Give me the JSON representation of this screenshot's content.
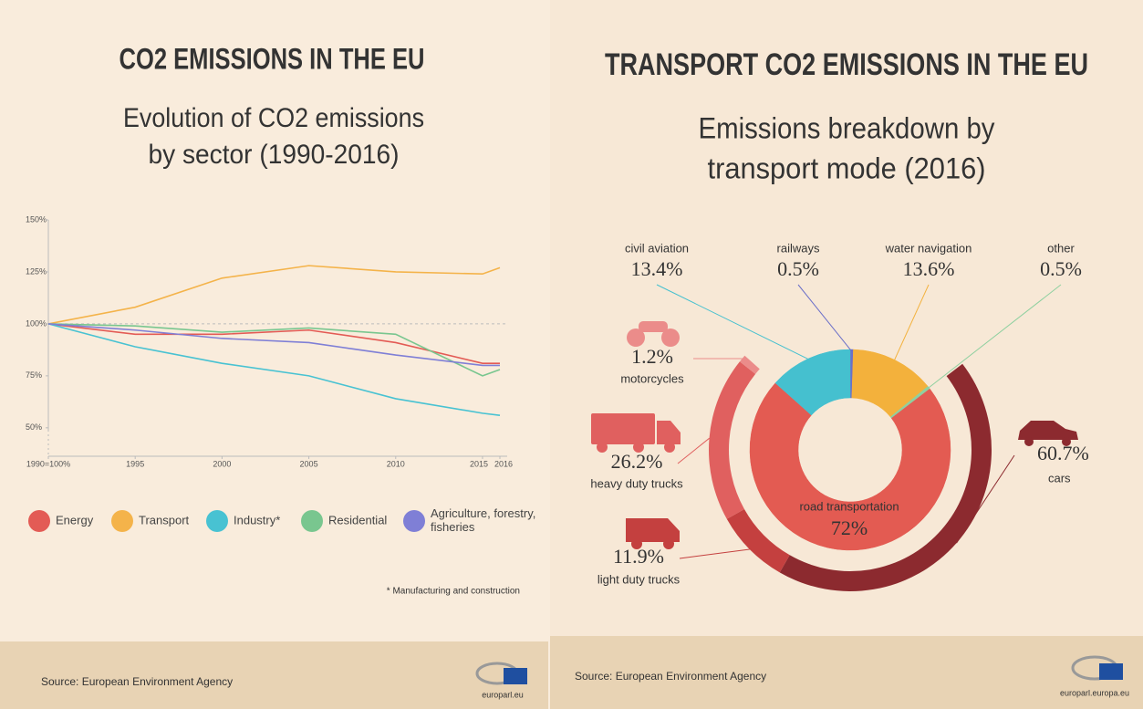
{
  "chart_data": [
    {
      "type": "line",
      "title": "CO2 EMISSIONS IN THE EU",
      "subtitle": [
        "Evolution of CO2 emissions",
        "by sector (1990-2016)"
      ],
      "x": [
        1990,
        1995,
        2000,
        2005,
        2010,
        2015,
        2016
      ],
      "xlim": [
        1990,
        2016
      ],
      "xticks": [
        {
          "value": 1990,
          "label": "1990=100%"
        },
        1995,
        2000,
        2005,
        2010,
        2015,
        2016
      ],
      "ylim": [
        35,
        150
      ],
      "yticks": [
        {
          "value": 50,
          "label": "50%"
        },
        {
          "value": 75,
          "label": "75%"
        },
        {
          "value": 100,
          "label": "100%"
        },
        {
          "value": 125,
          "label": "125%"
        },
        {
          "value": 150,
          "label": "150%"
        }
      ],
      "reference_line": 100,
      "series": [
        {
          "name": "Energy",
          "color": "#e35b55",
          "values": [
            100,
            95,
            95,
            97,
            91,
            81,
            81
          ]
        },
        {
          "name": "Transport",
          "color": "#f4b34a",
          "values": [
            100,
            108,
            122,
            128,
            125,
            124,
            127
          ]
        },
        {
          "name": "Industry*",
          "color": "#48c2d2",
          "values": [
            100,
            89,
            81,
            75,
            64,
            57,
            56
          ]
        },
        {
          "name": "Residential",
          "color": "#79c68f",
          "values": [
            100,
            99,
            96,
            98,
            95,
            75,
            78
          ]
        },
        {
          "name": "Agriculture, forestry, fisheries",
          "color": "#7f7fd6",
          "values": [
            100,
            97,
            93,
            91,
            85,
            80,
            80
          ]
        }
      ],
      "footnote": "* Manufacturing and construction",
      "source": "Source: European Environment Agency",
      "logo_text": "europarl.eu"
    },
    {
      "type": "donut",
      "title": "TRANSPORT CO2 EMISSIONS IN THE EU",
      "subtitle": [
        "Emissions breakdown by",
        "transport mode (2016)"
      ],
      "categories": [
        "railways",
        "water navigation",
        "other",
        "road transportation",
        "civil aviation"
      ],
      "values": [
        0.5,
        13.6,
        0.5,
        72,
        13.4
      ],
      "value_labels": [
        "0.5%",
        "13.6%",
        "0.5%",
        "72%",
        "13.4%"
      ],
      "colors": [
        "#6b6fc8",
        "#f3b13c",
        "#8fd0a0",
        "#e35b52",
        "#45c0cf"
      ],
      "breakdown": {
        "categories": [
          "cars",
          "light duty trucks",
          "heavy duty trucks",
          "motorcycles"
        ],
        "values": [
          60.7,
          11.9,
          26.2,
          1.2
        ],
        "value_labels": [
          "60.7%",
          "11.9%",
          "26.2%",
          "1.2%"
        ],
        "colors": [
          "#8c2a2f",
          "#c4403f",
          "#e0605f",
          "#eb8c8a"
        ]
      },
      "source": "Source: European Environment Agency",
      "logo_text": "europarl.europa.eu"
    }
  ]
}
